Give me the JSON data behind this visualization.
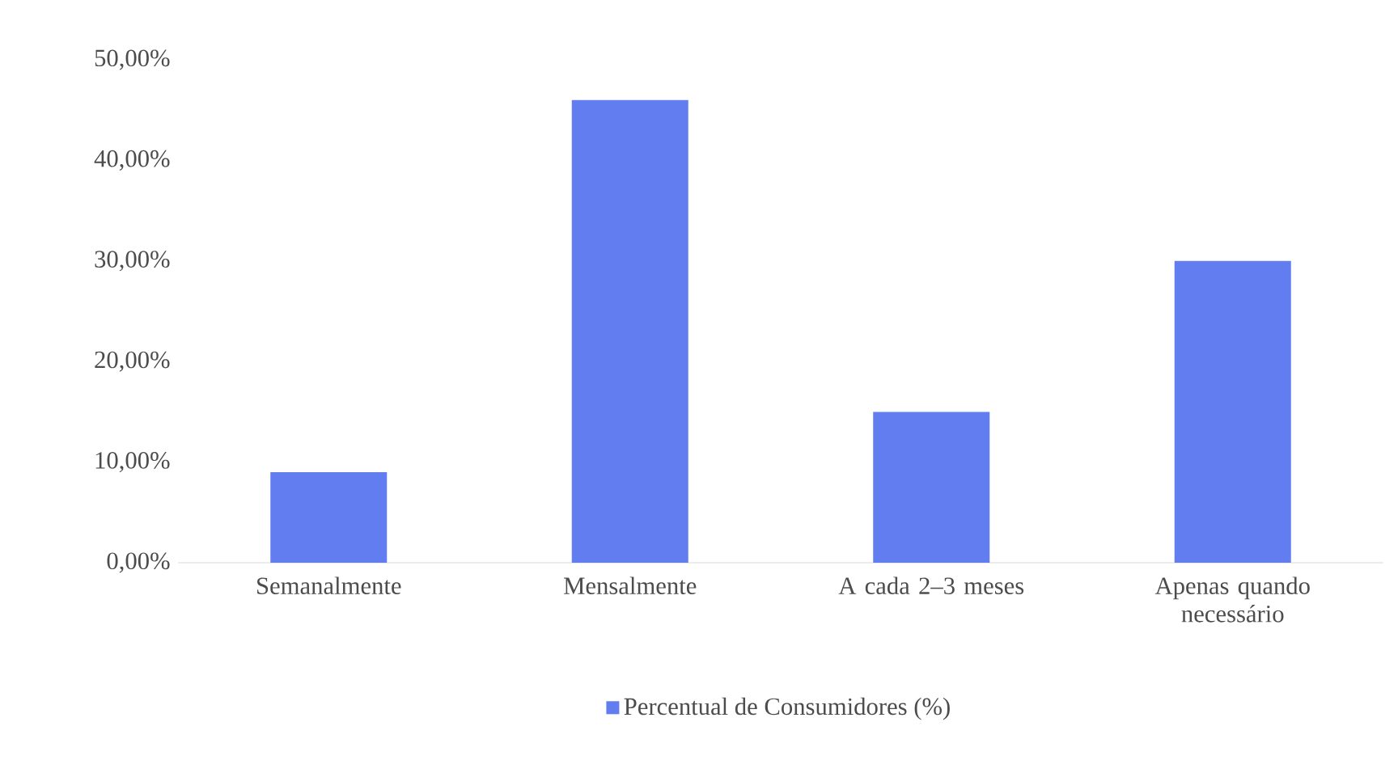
{
  "chart_data": {
    "type": "bar",
    "categories": [
      "Semanalmente",
      "Mensalmente",
      "A cada 2–3 meses",
      "Apenas quando necessário"
    ],
    "series": [
      {
        "name": "Percentual de Consumidores (%)",
        "color": "#617df0",
        "values": [
          9,
          46,
          15,
          30
        ]
      }
    ],
    "ylim": [
      0,
      50
    ],
    "yticks": [
      {
        "value": 0,
        "label": "0,00%"
      },
      {
        "value": 10,
        "label": "10,00%"
      },
      {
        "value": 20,
        "label": "20,00%"
      },
      {
        "value": 30,
        "label": "30,00%"
      },
      {
        "value": 40,
        "label": "40,00%"
      },
      {
        "value": 50,
        "label": "50,00%"
      }
    ],
    "legend": "bottom"
  }
}
